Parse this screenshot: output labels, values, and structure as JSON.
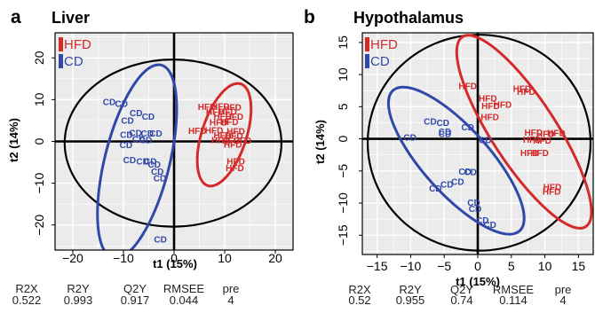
{
  "colors": {
    "hfd": "#d42a2a",
    "cd": "#3048a8",
    "ellipse": "#000000",
    "grid": "#d4d4d4",
    "plot_bg": "#ebebeb"
  },
  "chart_data": [
    {
      "type": "scatter",
      "panel_letter": "a",
      "title": "Liver",
      "xlabel": "t1 (15%)",
      "ylabel": "t2 (14%)",
      "xlim": [
        -23.5,
        23.5
      ],
      "ylim": [
        -26,
        26
      ],
      "xticks": [
        -20,
        -10,
        0,
        10,
        20
      ],
      "yticks": [
        -20,
        -10,
        0,
        10,
        20
      ],
      "grid": true,
      "legend": {
        "placement": "top-left",
        "entries": [
          "HFD",
          "CD"
        ]
      },
      "series": [
        {
          "name": "HFD",
          "color": "#d42a2a",
          "label": "HFD",
          "points": [
            [
              6.5,
              8.3
            ],
            [
              9.2,
              8.4
            ],
            [
              11.5,
              8.2
            ],
            [
              8.1,
              7.1
            ],
            [
              10.6,
              7.1
            ],
            [
              9.6,
              6.0
            ],
            [
              11.9,
              5.9
            ],
            [
              8.8,
              4.6
            ],
            [
              10.9,
              4.7
            ],
            [
              4.6,
              2.5
            ],
            [
              7.9,
              2.7
            ],
            [
              12.2,
              2.4
            ],
            [
              9.6,
              1.5
            ],
            [
              11.8,
              1.4
            ],
            [
              9.2,
              0.3
            ],
            [
              11.2,
              0.2
            ],
            [
              13.5,
              0.2
            ],
            [
              11.6,
              -0.7
            ],
            [
              12.2,
              -4.8
            ],
            [
              12.0,
              -6.4
            ]
          ]
        },
        {
          "name": "CD",
          "color": "#3048a8",
          "label": "CD",
          "points": [
            [
              -12.8,
              9.4
            ],
            [
              -10.4,
              9.0
            ],
            [
              -7.5,
              6.8
            ],
            [
              -9.2,
              5.0
            ],
            [
              -5.1,
              5.9
            ],
            [
              -9.4,
              1.6
            ],
            [
              -7.6,
              2.0
            ],
            [
              -5.3,
              1.9
            ],
            [
              -3.6,
              1.9
            ],
            [
              -7.0,
              0.5
            ],
            [
              -5.6,
              0.3
            ],
            [
              -9.5,
              -0.8
            ],
            [
              -8.8,
              -4.5
            ],
            [
              -6.2,
              -4.8
            ],
            [
              -4.7,
              -4.8
            ],
            [
              -3.9,
              -5.5
            ],
            [
              -3.3,
              -7.2
            ],
            [
              -2.8,
              -8.8
            ],
            [
              -2.7,
              -23.5
            ]
          ]
        }
      ],
      "ellipses": [
        {
          "group": "overall",
          "color": "#000000",
          "cx": -0.2,
          "cy": -0.4,
          "rx": 21.4,
          "ry": 20.0,
          "angle_deg": 0
        },
        {
          "group": "HFD",
          "color": "#d42a2a",
          "cx": 9.9,
          "cy": 1.6,
          "rx": 4.4,
          "ry": 12.8,
          "angle_deg": 18
        },
        {
          "group": "CD",
          "color": "#3048a8",
          "cx": -7.3,
          "cy": -4.8,
          "rx": 6.4,
          "ry": 23.8,
          "angle_deg": 14
        }
      ],
      "stats": {
        "headers": [
          "R2X",
          "R2Y",
          "Q2Y",
          "RMSEE",
          "pre"
        ],
        "values": [
          "0.522",
          "0.993",
          "0.917",
          "0.044",
          "4"
        ]
      }
    },
    {
      "type": "scatter",
      "panel_letter": "b",
      "title": "Hypothalamus",
      "xlabel": "t1 (15%)",
      "ylabel": "t2 (14%)",
      "xlim": [
        -17.2,
        17.2
      ],
      "ylim": [
        -18,
        16.5
      ],
      "xticks": [
        -15,
        -10,
        -5,
        0,
        5,
        10,
        15
      ],
      "yticks": [
        -15,
        -10,
        -5,
        0,
        5,
        10,
        15
      ],
      "grid": true,
      "legend": {
        "placement": "top-left",
        "entries": [
          "HFD",
          "CD"
        ]
      },
      "series": [
        {
          "name": "HFD",
          "color": "#d42a2a",
          "label": "HFD",
          "points": [
            [
              -1.5,
              8.2
            ],
            [
              1.5,
              6.3
            ],
            [
              6.6,
              7.8
            ],
            [
              7.2,
              7.3
            ],
            [
              1.9,
              5.1
            ],
            [
              3.7,
              5.3
            ],
            [
              1.8,
              3.4
            ],
            [
              8.3,
              1.0
            ],
            [
              10.1,
              0.8
            ],
            [
              8.1,
              -0.1
            ],
            [
              9.6,
              -0.3
            ],
            [
              11.7,
              0.9
            ],
            [
              7.7,
              -2.2
            ],
            [
              9.2,
              -2.2
            ],
            [
              11.1,
              -7.5
            ],
            [
              11.0,
              -8.2
            ]
          ]
        },
        {
          "name": "CD",
          "color": "#3048a8",
          "label": "CD",
          "points": [
            [
              -7.1,
              2.7
            ],
            [
              -5.2,
              2.5
            ],
            [
              -4.9,
              1.1
            ],
            [
              -4.9,
              0.8
            ],
            [
              -1.5,
              1.8
            ],
            [
              -10.1,
              0.2
            ],
            [
              1.1,
              -0.2
            ],
            [
              -1.9,
              -5.1
            ],
            [
              -1.1,
              -5.2
            ],
            [
              -4.6,
              -7.1
            ],
            [
              -3.0,
              -6.7
            ],
            [
              -6.3,
              -7.7
            ],
            [
              -0.6,
              -9.9
            ],
            [
              -0.4,
              -10.9
            ],
            [
              0.7,
              -12.7
            ],
            [
              1.8,
              -13.4
            ]
          ]
        }
      ],
      "ellipses": [
        {
          "group": "overall",
          "color": "#000000",
          "cx": 0.2,
          "cy": -0.6,
          "rx": 16.6,
          "ry": 16.8,
          "angle_deg": 0
        },
        {
          "group": "HFD",
          "color": "#d42a2a",
          "cx": 6.9,
          "cy": 1.1,
          "rx": 4.8,
          "ry": 17.6,
          "angle_deg": -33
        },
        {
          "group": "CD",
          "color": "#3048a8",
          "cx": -3.2,
          "cy": -3.4,
          "rx": 4.9,
          "ry": 14.7,
          "angle_deg": -42
        }
      ],
      "stats": {
        "headers": [
          "R2X",
          "R2Y",
          "Q2Y",
          "RMSEE",
          "pre"
        ],
        "values": [
          "0.52",
          "0.955",
          "0.74",
          "0.114",
          "4"
        ]
      }
    }
  ]
}
